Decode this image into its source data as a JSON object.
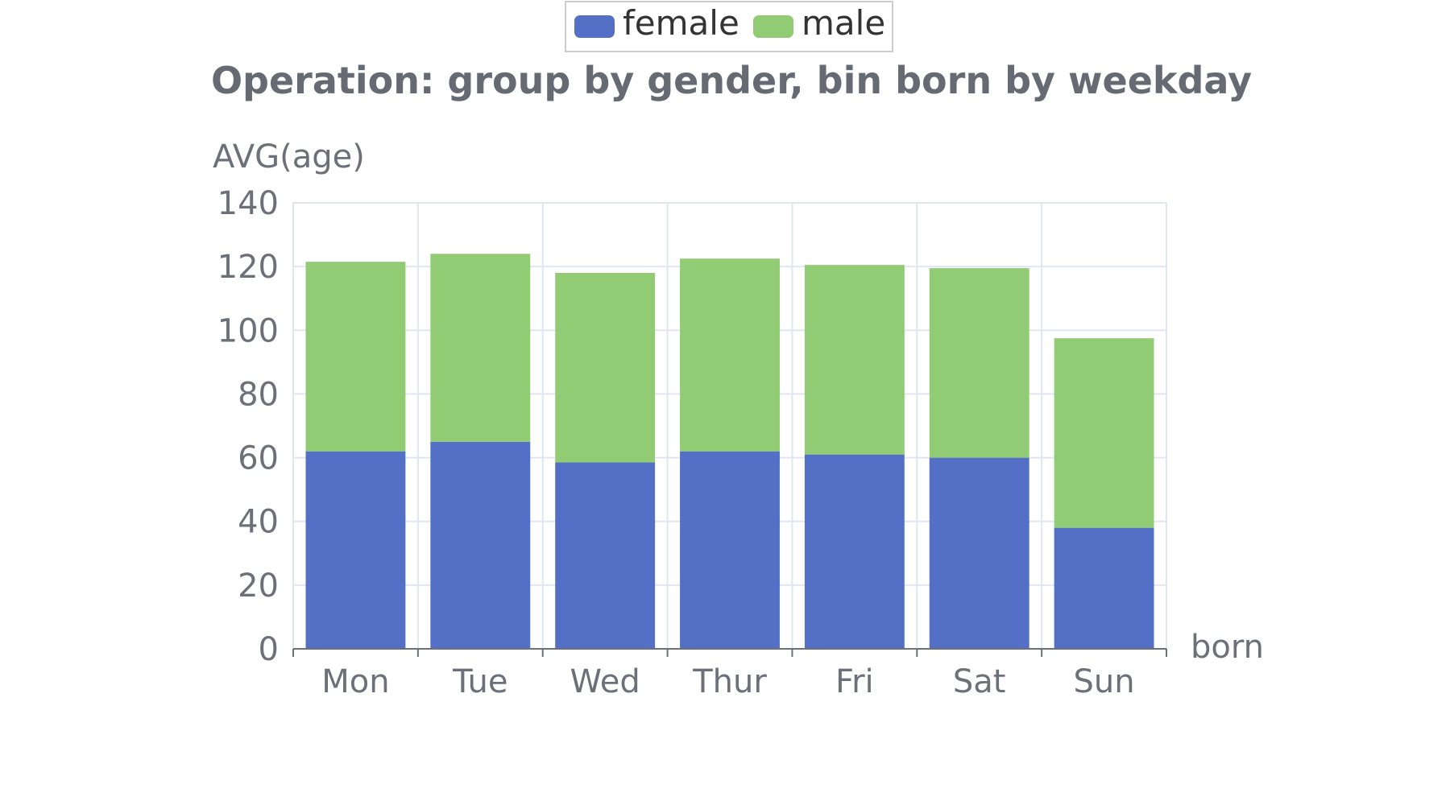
{
  "chart_data": {
    "type": "bar",
    "stacked": true,
    "title": "Operation: group by gender, bin born by weekday",
    "xlabel": "born",
    "ylabel": "AVG(age)",
    "categories": [
      "Mon",
      "Tue",
      "Wed",
      "Thur",
      "Fri",
      "Sat",
      "Sun"
    ],
    "ylim": [
      0,
      140
    ],
    "yticks": [
      "0",
      "20",
      "40",
      "60",
      "80",
      "100",
      "120",
      "140"
    ],
    "grid": true,
    "legend_placement": "top-center",
    "series": [
      {
        "name": "female",
        "color": "#5470c6",
        "values": [
          62,
          65,
          58.5,
          62,
          61,
          60,
          38
        ]
      },
      {
        "name": "male",
        "color": "#91cc75",
        "values": [
          59.5,
          59,
          59.5,
          60.5,
          59.5,
          59.5,
          59.5
        ]
      }
    ]
  }
}
